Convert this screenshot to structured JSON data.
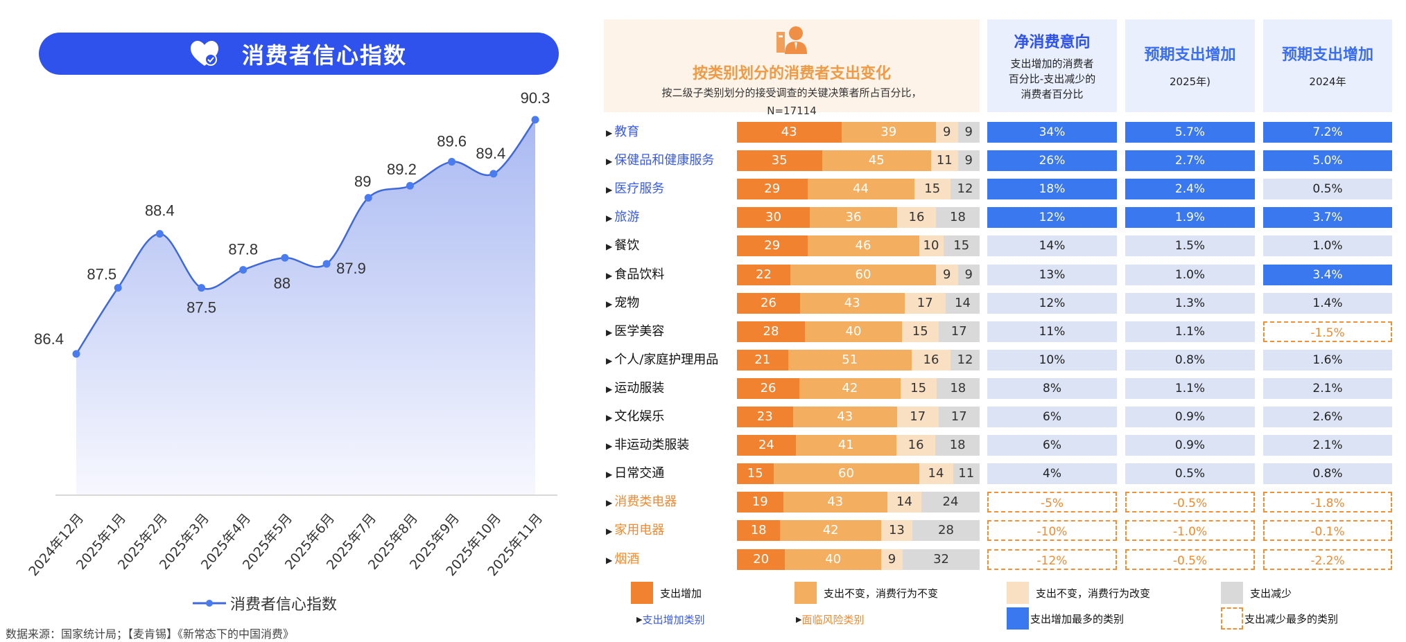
{
  "left": {
    "title": "消费者信心指数",
    "title_icon": "heart-check-icon",
    "legend": "消费者信心指数",
    "source": "数据来源：国家统计局；【麦肯锡】《新常态下的中国消费》"
  },
  "right": {
    "header": {
      "title": "按类别划分的消费者支出变化",
      "subtitle": "按二级子类别划分的接受调查的关键决策者所占百分比，",
      "n": "N=17114",
      "icon": "person-report-icon",
      "col1_title": "净消费意向",
      "col1_sub": "支出增加的消费者百分比-支出减少的消费者百分比",
      "col2_title": "预期支出增加",
      "col2_sub": "2025年)",
      "col3_title": "预期支出增加",
      "col3_sub": "2024年"
    },
    "legend": {
      "increase": "支出增加",
      "same_same": "支出不变，消费行为不变",
      "same_change": "支出不变，消费行为改变",
      "decrease": "支出减少",
      "growth_cat": "支出增加类别",
      "risk_cat": "面临风险类别",
      "most_increase": "支出增加最多的类别",
      "most_decrease": "支出减少最多的类别"
    }
  },
  "colors": {
    "title_bar": "#2f52ec",
    "line": "#3f68d8",
    "increase": "#f08230",
    "same_same": "#f3ae60",
    "same_change": "#fae0c2",
    "decrease": "#d9d9d9",
    "highlight": "#3a78f0",
    "cell_light": "#dbe3f5",
    "risk": "#f08a30",
    "growth": "#3a5be8"
  },
  "chart_data": [
    {
      "type": "line",
      "title": "消费者信心指数",
      "series": [
        {
          "name": "消费者信心指数",
          "values": [
            86.4,
            87.5,
            88.4,
            87.5,
            87.8,
            88,
            87.9,
            89,
            89.2,
            89.6,
            89.4,
            90.3
          ]
        }
      ],
      "categories": [
        "2024年12月",
        "2025年1月",
        "2025年2月",
        "2025年3月",
        "2025年4月",
        "2025年5月",
        "2025年6月",
        "2025年7月",
        "2025年8月",
        "2025年9月",
        "2025年10月",
        "2025年11月"
      ],
      "area_fill": true,
      "grid": false
    },
    {
      "type": "table",
      "title": "按类别划分的消费者支出变化",
      "rows": [
        {
          "label": "教育",
          "kind": "growth",
          "bars": [
            43,
            39,
            9,
            9
          ],
          "net": "34%",
          "net_s": "hi",
          "y25": "5.7%",
          "y25_s": "hi",
          "y24": "7.2%",
          "y24_s": "hi"
        },
        {
          "label": "保健品和健康服务",
          "kind": "growth",
          "bars": [
            35,
            45,
            11,
            9
          ],
          "net": "26%",
          "net_s": "hi",
          "y25": "2.7%",
          "y25_s": "hi",
          "y24": "5.0%",
          "y24_s": "hi"
        },
        {
          "label": "医疗服务",
          "kind": "growth",
          "bars": [
            29,
            44,
            15,
            12
          ],
          "net": "18%",
          "net_s": "hi",
          "y25": "2.4%",
          "y25_s": "hi",
          "y24": "0.5%",
          "y24_s": "light"
        },
        {
          "label": "旅游",
          "kind": "growth",
          "bars": [
            30,
            36,
            16,
            18
          ],
          "net": "12%",
          "net_s": "hi",
          "y25": "1.9%",
          "y25_s": "hi",
          "y24": "3.7%",
          "y24_s": "hi"
        },
        {
          "label": "餐饮",
          "kind": "normal",
          "bars": [
            29,
            46,
            10,
            15
          ],
          "net": "14%",
          "net_s": "light",
          "y25": "1.5%",
          "y25_s": "light",
          "y24": "1.0%",
          "y24_s": "light"
        },
        {
          "label": "食品饮料",
          "kind": "normal",
          "bars": [
            22,
            60,
            9,
            9
          ],
          "net": "13%",
          "net_s": "light",
          "y25": "1.0%",
          "y25_s": "light",
          "y24": "3.4%",
          "y24_s": "hi"
        },
        {
          "label": "宠物",
          "kind": "normal",
          "bars": [
            26,
            43,
            17,
            14
          ],
          "net": "12%",
          "net_s": "light",
          "y25": "1.3%",
          "y25_s": "light",
          "y24": "1.4%",
          "y24_s": "light"
        },
        {
          "label": "医学美容",
          "kind": "normal",
          "bars": [
            28,
            40,
            15,
            17
          ],
          "net": "11%",
          "net_s": "light",
          "y25": "1.1%",
          "y25_s": "light",
          "y24": "-1.5%",
          "y24_s": "dash"
        },
        {
          "label": "个人/家庭护理用品",
          "kind": "normal",
          "bars": [
            21,
            51,
            16,
            12
          ],
          "net": "10%",
          "net_s": "light",
          "y25": "0.8%",
          "y25_s": "light",
          "y24": "1.6%",
          "y24_s": "light"
        },
        {
          "label": "运动服装",
          "kind": "normal",
          "bars": [
            26,
            42,
            15,
            18
          ],
          "net": "8%",
          "net_s": "light",
          "y25": "1.1%",
          "y25_s": "light",
          "y24": "2.1%",
          "y24_s": "light"
        },
        {
          "label": "文化娱乐",
          "kind": "normal",
          "bars": [
            23,
            43,
            17,
            17
          ],
          "net": "6%",
          "net_s": "light",
          "y25": "0.9%",
          "y25_s": "light",
          "y24": "2.6%",
          "y24_s": "light"
        },
        {
          "label": "非运动类服装",
          "kind": "normal",
          "bars": [
            24,
            41,
            16,
            18
          ],
          "net": "6%",
          "net_s": "light",
          "y25": "0.9%",
          "y25_s": "light",
          "y24": "2.1%",
          "y24_s": "light"
        },
        {
          "label": "日常交通",
          "kind": "normal",
          "bars": [
            15,
            60,
            14,
            11
          ],
          "net": "4%",
          "net_s": "light",
          "y25": "0.5%",
          "y25_s": "light",
          "y24": "0.8%",
          "y24_s": "light"
        },
        {
          "label": "消费类电器",
          "kind": "risk",
          "bars": [
            19,
            43,
            14,
            24
          ],
          "net": "-5%",
          "net_s": "dash",
          "y25": "-0.5%",
          "y25_s": "dash",
          "y24": "-1.8%",
          "y24_s": "dash"
        },
        {
          "label": "家用电器",
          "kind": "risk",
          "bars": [
            18,
            42,
            13,
            28
          ],
          "net": "-10%",
          "net_s": "dash",
          "y25": "-1.0%",
          "y25_s": "dash",
          "y24": "-0.1%",
          "y24_s": "dash"
        },
        {
          "label": "烟酒",
          "kind": "risk",
          "bars": [
            20,
            40,
            9,
            32
          ],
          "net": "-12%",
          "net_s": "dash",
          "y25": "-0.5%",
          "y25_s": "dash",
          "y24": "-2.2%",
          "y24_s": "dash"
        }
      ]
    }
  ]
}
